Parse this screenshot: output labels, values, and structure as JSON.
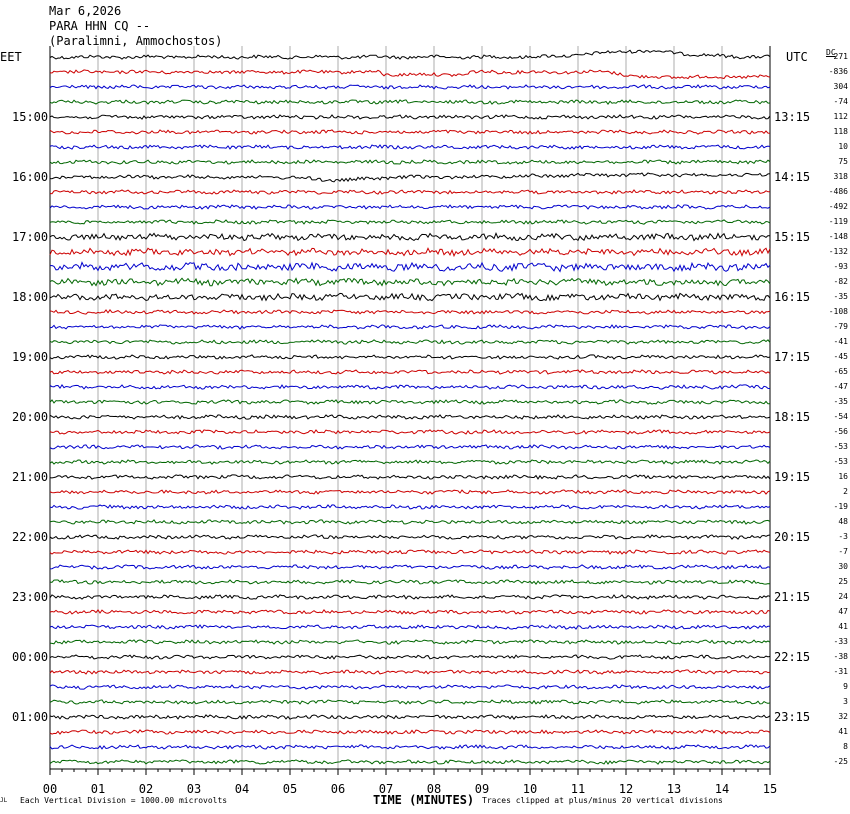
{
  "header": {
    "date": "Mar 6,2026",
    "station": "PARA HHN CQ --",
    "location": "(Paralimni, Ammochostos)"
  },
  "corner": {
    "left": "EET",
    "right": "UTC",
    "dc": "DC"
  },
  "chart_data": {
    "type": "line",
    "xlabel": "TIME (MINUTES)",
    "xlim": [
      0,
      15
    ],
    "x_ticks": [
      "00",
      "01",
      "02",
      "03",
      "04",
      "05",
      "06",
      "07",
      "08",
      "09",
      "10",
      "11",
      "12",
      "13",
      "14",
      "15"
    ],
    "trace_colors": [
      "#000000",
      "#cc0000",
      "#0000cc",
      "#006600"
    ],
    "left_labels": [
      "15:00",
      "16:00",
      "17:00",
      "18:00",
      "19:00",
      "20:00",
      "21:00",
      "22:00",
      "23:00",
      "00:00",
      "01:00"
    ],
    "right_labels": [
      "13:15",
      "14:15",
      "15:15",
      "16:15",
      "17:15",
      "18:15",
      "19:15",
      "20:15",
      "21:15",
      "22:15",
      "23:15"
    ],
    "dc_offsets": [
      "271",
      "-836",
      "304",
      "-74",
      "112",
      "118",
      "10",
      "75",
      "318",
      "-486",
      "-492",
      "-119",
      "-148",
      "-132",
      "-93",
      "-82",
      "-35",
      "-108",
      "-79",
      "-41",
      "-45",
      "-65",
      "-47",
      "-35",
      "-54",
      "-56",
      "-53",
      "-53",
      "16",
      "2",
      "-19",
      "48",
      "-3",
      "-7",
      "30",
      "25",
      "24",
      "47",
      "41",
      "-33",
      "-38",
      "-31",
      "9",
      "3",
      "32",
      "41",
      "8",
      "-25"
    ],
    "scale_note": "Each Vertical Division = 1000.00 microvolts",
    "clip_note": "Traces clipped at plus/minus 20 vertical divisions",
    "corner_mark": "JL"
  }
}
